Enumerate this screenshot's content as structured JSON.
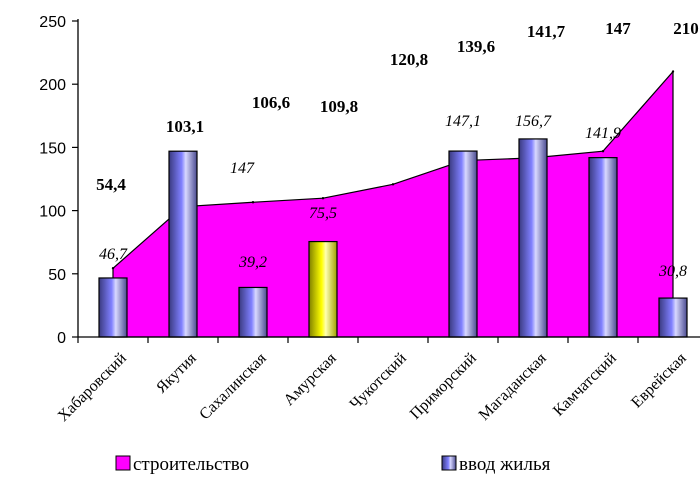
{
  "chart_data": {
    "type": "area",
    "categories": [
      "Хабаровский",
      "Якутия",
      "Сахалинская",
      "Амурская",
      "Чукотский",
      "Приморский",
      "Магаданская",
      "Камчатский",
      "Еврейская"
    ],
    "series": [
      {
        "name": "строительство",
        "type": "area",
        "color": "#ff00ff",
        "values": [
          54.4,
          103.1,
          106.6,
          109.8,
          120.8,
          139.6,
          141.7,
          147,
          210
        ],
        "labels": [
          "54,4",
          "103,1",
          "106,6",
          "109,8",
          "120,8",
          "139,6",
          "141,7",
          "147",
          "210"
        ]
      },
      {
        "name": "ввод жилья",
        "type": "bar",
        "color": "#8080ff",
        "highlight_color": "#ffff00",
        "highlight_index": 3,
        "values": [
          46.7,
          147,
          39.2,
          75.5,
          null,
          147.1,
          156.7,
          141.9,
          30.8
        ],
        "labels": [
          "46,7",
          "147",
          "39,2",
          "75,5",
          "",
          "147,1",
          "156,7",
          "141,9",
          "30,8"
        ]
      }
    ],
    "ylim": [
      0,
      250
    ],
    "yticks": [
      0,
      50,
      100,
      150,
      200,
      250
    ],
    "xlabel": "",
    "ylabel": "",
    "grid": false,
    "legend_position": "bottom"
  }
}
